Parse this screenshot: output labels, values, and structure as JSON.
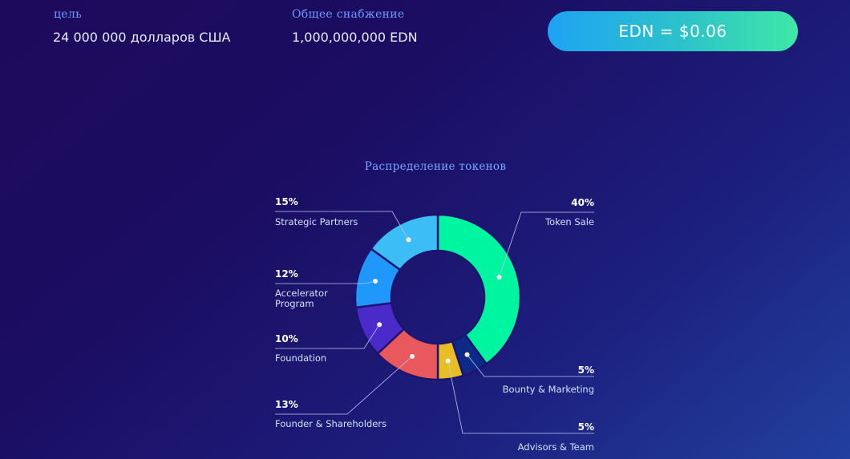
{
  "header": {
    "goal_label": "цель",
    "goal_value": "24 000 000 долларов США",
    "supply_label": "Общее снабжение",
    "supply_value": "1,000,000,000 EDN",
    "price_button": "EDN = $0.06"
  },
  "chart_data": {
    "type": "pie",
    "title": "Распределение токенов",
    "donut": true,
    "slices": [
      {
        "name": "Token Sale",
        "value": 40,
        "label": "40%",
        "color": "#00f5a0"
      },
      {
        "name": "Bounty & Marketing",
        "value": 5,
        "label": "5%",
        "color": "#0d2a86"
      },
      {
        "name": "Advisors & Team",
        "value": 5,
        "label": "5%",
        "color": "#e7bf25"
      },
      {
        "name": "Founder & Shareholders",
        "value": 13,
        "label": "13%",
        "color": "#e9585c"
      },
      {
        "name": "Foundation",
        "value": 10,
        "label": "10%",
        "color": "#4a2bc9"
      },
      {
        "name": "Accelerator Program",
        "value": 12,
        "label": "12%",
        "color": "#1f97fb",
        "label_lines": [
          "Accelerator",
          "Program"
        ]
      },
      {
        "name": "Strategic Partners",
        "value": 15,
        "label": "15%",
        "color": "#3cbdf6"
      }
    ]
  }
}
